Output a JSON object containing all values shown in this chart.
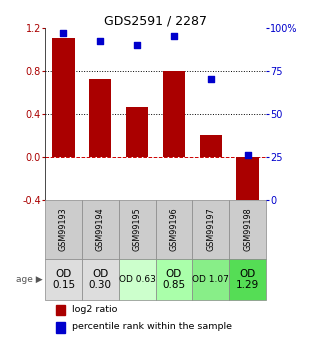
{
  "title": "GDS2591 / 2287",
  "samples": [
    "GSM99193",
    "GSM99194",
    "GSM99195",
    "GSM99196",
    "GSM99197",
    "GSM99198"
  ],
  "log2_ratio": [
    1.1,
    0.72,
    0.46,
    0.8,
    0.2,
    -0.52
  ],
  "percentile_rank": [
    97,
    92,
    90,
    95,
    70,
    26
  ],
  "bar_color": "#aa0000",
  "dot_color": "#0000cc",
  "ylim_left": [
    -0.4,
    1.2
  ],
  "ylim_right": [
    0,
    100
  ],
  "yticks_left": [
    -0.4,
    0.0,
    0.4,
    0.8,
    1.2
  ],
  "yticks_right": [
    0,
    25,
    50,
    75,
    100
  ],
  "hline_color": "#cc0000",
  "dotline_values": [
    0.4,
    0.8
  ],
  "age_labels": [
    "OD\n0.15",
    "OD\n0.30",
    "OD 0.63",
    "OD\n0.85",
    "OD 1.07",
    "OD\n1.29"
  ],
  "age_bg_colors": [
    "#dddddd",
    "#dddddd",
    "#ccffcc",
    "#aaffaa",
    "#88ee88",
    "#55dd55"
  ],
  "age_fontsize": [
    7.5,
    7.5,
    6.5,
    7.5,
    6.5,
    7.5
  ],
  "sample_row_color": "#cccccc",
  "legend_red_label": "log2 ratio",
  "legend_blue_label": "percentile rank within the sample"
}
